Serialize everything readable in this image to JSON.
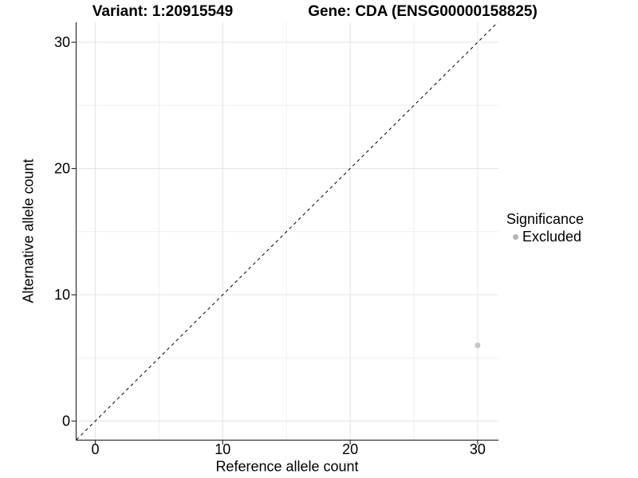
{
  "titles": {
    "variant": "Variant: 1:20915549",
    "gene": "Gene: CDA (ENSG00000158825)"
  },
  "colors": {
    "background": "#ffffff",
    "axis_line": "#333333",
    "tick": "#333333",
    "text": "#000000",
    "grid_major": "#e4e4e4",
    "grid_minor": "#efefef",
    "reference_line": "#000000",
    "point": "#c6c6c6",
    "legend_point": "#b5b5b5"
  },
  "chart_data": {
    "type": "scatter",
    "title": "Variant: 1:20915549          Gene: CDA (ENSG00000158825)",
    "xlabel": "Reference allele count",
    "ylabel": "Alternative allele count",
    "xlim": [
      -1.53,
      31.63
    ],
    "ylim": [
      -1.48,
      31.58
    ],
    "x_ticks": [
      0,
      10,
      20,
      30
    ],
    "y_ticks": [
      0,
      10,
      20,
      30
    ],
    "x_minor_ticks": [
      5,
      15,
      25
    ],
    "y_minor_ticks": [
      5,
      15,
      25
    ],
    "grid": "major+minor",
    "reference_line": {
      "type": "identity-abline",
      "slope": 1,
      "intercept": 0,
      "style": "dashed",
      "dash": "4 4"
    },
    "series": [
      {
        "name": "Excluded",
        "color": "#c6c6c6",
        "radius": 3.5,
        "points": [
          {
            "x": 30,
            "y": 6
          }
        ]
      }
    ],
    "legend": {
      "title": "Significance",
      "position": "right",
      "items": [
        {
          "label": "Excluded",
          "color": "#b5b5b5",
          "marker": "circle-icon"
        }
      ]
    }
  }
}
